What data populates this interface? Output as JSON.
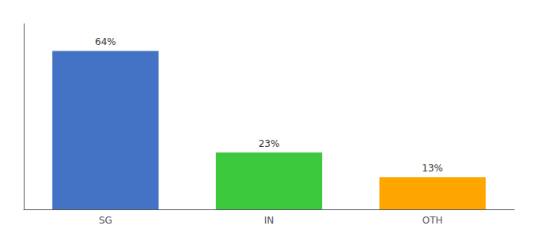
{
  "chart_data": {
    "type": "bar",
    "categories": [
      "SG",
      "IN",
      "OTH"
    ],
    "values": [
      64,
      23,
      13
    ],
    "value_labels": [
      "64%",
      "23%",
      "13%"
    ],
    "data_labels": true,
    "colors": [
      "#4472C4",
      "#3DC93D",
      "#FFA500"
    ],
    "ylim": [
      0,
      75
    ],
    "grid": false,
    "tick_labels": "x"
  }
}
